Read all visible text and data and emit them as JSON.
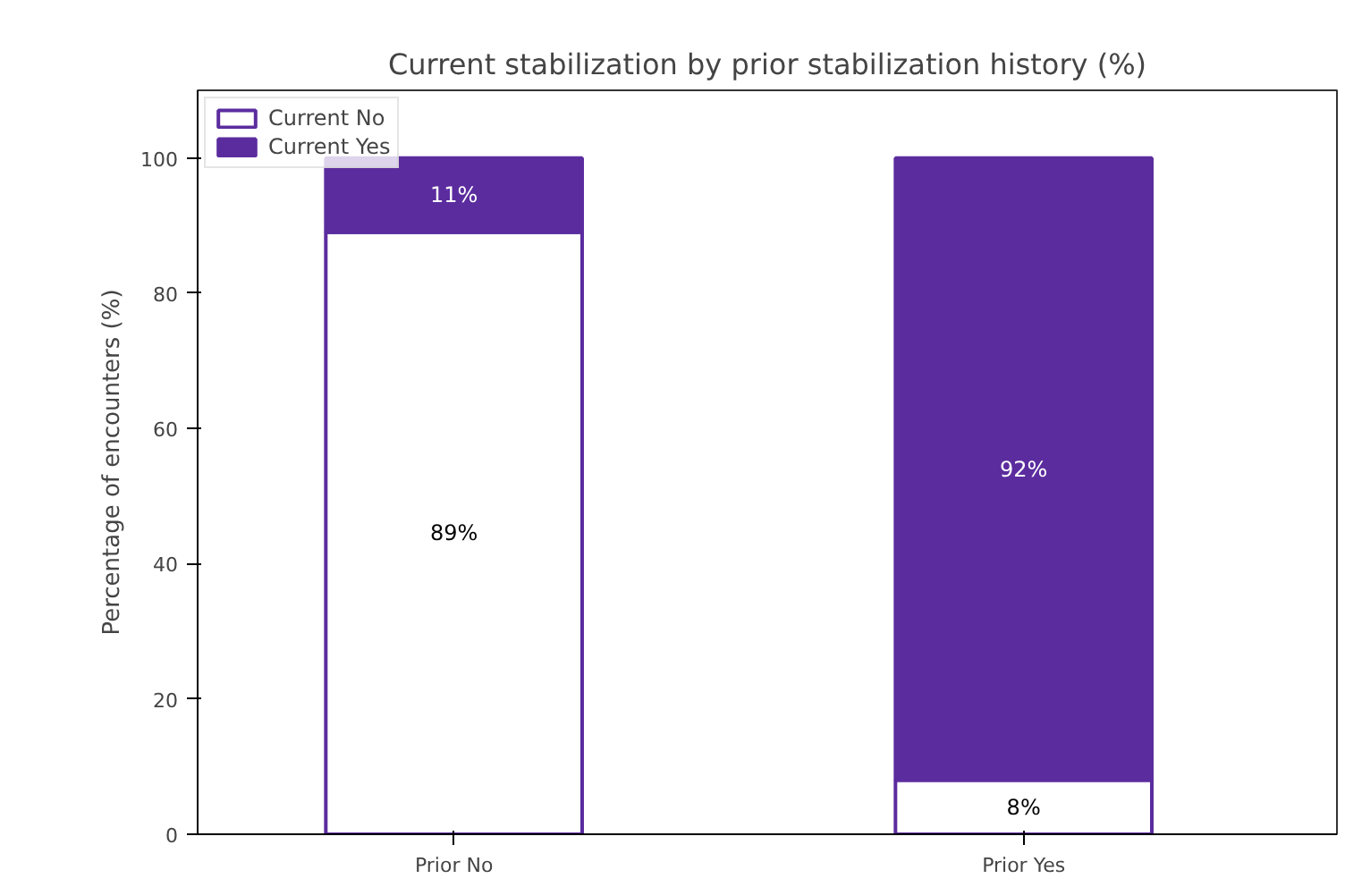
{
  "chart_data": {
    "type": "bar",
    "stacked": true,
    "title": "Current stabilization by prior stabilization history (%)",
    "ylabel": "Percentage of encounters (%)",
    "categories": [
      "Prior No",
      "Prior Yes"
    ],
    "series": [
      {
        "name": "Current No",
        "color": "#ffffff",
        "values": [
          89,
          8
        ],
        "value_labels": [
          "89%",
          "8%"
        ]
      },
      {
        "name": "Current Yes",
        "color": "#5b2c9e",
        "values": [
          11,
          92
        ],
        "value_labels": [
          "11%",
          "92%"
        ]
      }
    ],
    "ylim": [
      0,
      110
    ],
    "yticks": [
      0,
      20,
      40,
      60,
      80,
      100
    ],
    "legend": "top left",
    "grid": false
  }
}
